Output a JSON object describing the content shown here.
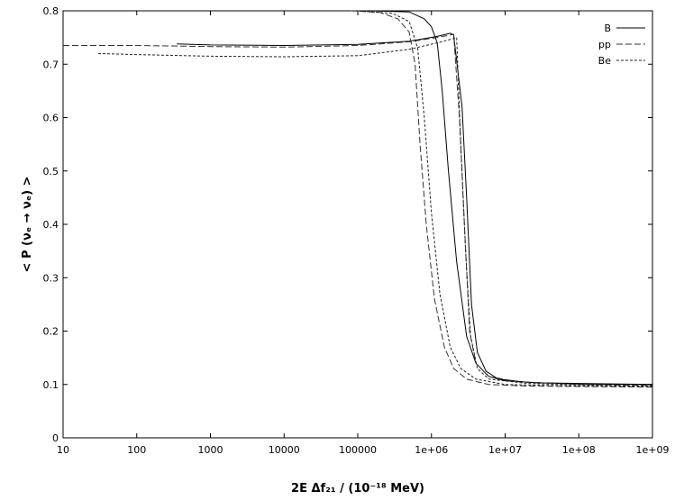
{
  "chart_data": {
    "type": "line",
    "title": "",
    "xlabel": "2E Δf₂₁ / (10⁻¹⁸ MeV)",
    "ylabel": "< P (νₑ → νₑ) >",
    "xscale": "log",
    "xlim": [
      10,
      1000000000
    ],
    "ylim": [
      0,
      0.8
    ],
    "grid": false,
    "legend_position": "top-right",
    "x_tick_labels": [
      "10",
      "100",
      "1000",
      "10000",
      "100000",
      "1e+06",
      "1e+07",
      "1e+08",
      "1e+09"
    ],
    "y_tick_labels": [
      "0",
      "0.1",
      "0.2",
      "0.3",
      "0.4",
      "0.5",
      "0.6",
      "0.7",
      "0.8"
    ],
    "series": [
      {
        "name": "B",
        "style": "solid",
        "points": [
          [
            350,
            0.738
          ],
          [
            1000,
            0.736
          ],
          [
            10000,
            0.735
          ],
          [
            100000,
            0.737
          ],
          [
            500000,
            0.743
          ],
          [
            1200000,
            0.752
          ],
          [
            1800000,
            0.758
          ],
          [
            2000000,
            0.755
          ],
          [
            2600000,
            0.62
          ],
          [
            3000000,
            0.45
          ],
          [
            3500000,
            0.25
          ],
          [
            4200000,
            0.16
          ],
          [
            5500000,
            0.125
          ],
          [
            8000000,
            0.11
          ],
          [
            20000000,
            0.104
          ],
          [
            100000000,
            0.101
          ],
          [
            1000000000,
            0.1
          ]
        ]
      },
      {
        "name": "B",
        "style": "solid",
        "points": [
          [
            150000,
            0.8
          ],
          [
            500000,
            0.798
          ],
          [
            800000,
            0.785
          ],
          [
            1000000,
            0.77
          ],
          [
            1200000,
            0.74
          ],
          [
            1400000,
            0.65
          ],
          [
            1700000,
            0.5
          ],
          [
            2200000,
            0.33
          ],
          [
            3000000,
            0.19
          ],
          [
            4000000,
            0.14
          ],
          [
            6000000,
            0.115
          ],
          [
            10000000,
            0.107
          ],
          [
            30000000,
            0.103
          ],
          [
            1000000000,
            0.1
          ]
        ]
      },
      {
        "name": "pp",
        "style": "longdash",
        "points": [
          [
            10,
            0.735
          ],
          [
            100,
            0.735
          ],
          [
            1000,
            0.733
          ],
          [
            10000,
            0.732
          ],
          [
            100000,
            0.735
          ],
          [
            500000,
            0.742
          ],
          [
            1200000,
            0.75
          ],
          [
            2000000,
            0.756
          ],
          [
            2400000,
            0.6
          ],
          [
            2800000,
            0.4
          ],
          [
            3300000,
            0.2
          ],
          [
            4000000,
            0.14
          ],
          [
            6000000,
            0.115
          ],
          [
            15000000,
            0.105
          ],
          [
            100000000,
            0.1
          ],
          [
            1000000000,
            0.098
          ]
        ]
      },
      {
        "name": "pp",
        "style": "longdash",
        "points": [
          [
            80000,
            0.8
          ],
          [
            200000,
            0.797
          ],
          [
            350000,
            0.785
          ],
          [
            500000,
            0.76
          ],
          [
            600000,
            0.7
          ],
          [
            700000,
            0.55
          ],
          [
            850000,
            0.4
          ],
          [
            1100000,
            0.26
          ],
          [
            1500000,
            0.17
          ],
          [
            2000000,
            0.13
          ],
          [
            3000000,
            0.11
          ],
          [
            6000000,
            0.1
          ],
          [
            20000000,
            0.097
          ],
          [
            1000000000,
            0.095
          ]
        ]
      },
      {
        "name": "Be",
        "style": "dashed",
        "points": [
          [
            30,
            0.72
          ],
          [
            100,
            0.718
          ],
          [
            1000,
            0.715
          ],
          [
            10000,
            0.714
          ],
          [
            100000,
            0.716
          ],
          [
            500000,
            0.728
          ],
          [
            1200000,
            0.74
          ],
          [
            2000000,
            0.748
          ],
          [
            2200000,
            0.75
          ],
          [
            2500000,
            0.55
          ],
          [
            2900000,
            0.35
          ],
          [
            3400000,
            0.19
          ],
          [
            4200000,
            0.13
          ],
          [
            6000000,
            0.11
          ],
          [
            20000000,
            0.102
          ],
          [
            100000000,
            0.099
          ],
          [
            1000000000,
            0.097
          ]
        ]
      },
      {
        "name": "Be",
        "style": "dashed",
        "points": [
          [
            100000,
            0.8
          ],
          [
            300000,
            0.795
          ],
          [
            500000,
            0.78
          ],
          [
            650000,
            0.73
          ],
          [
            800000,
            0.6
          ],
          [
            1000000,
            0.42
          ],
          [
            1300000,
            0.27
          ],
          [
            1800000,
            0.17
          ],
          [
            2500000,
            0.13
          ],
          [
            4000000,
            0.11
          ],
          [
            10000000,
            0.1
          ],
          [
            100000000,
            0.097
          ],
          [
            1000000000,
            0.096
          ]
        ]
      }
    ],
    "legend": [
      {
        "label": "B",
        "style": "solid"
      },
      {
        "label": "pp",
        "style": "longdash"
      },
      {
        "label": "Be",
        "style": "dashed"
      }
    ]
  }
}
